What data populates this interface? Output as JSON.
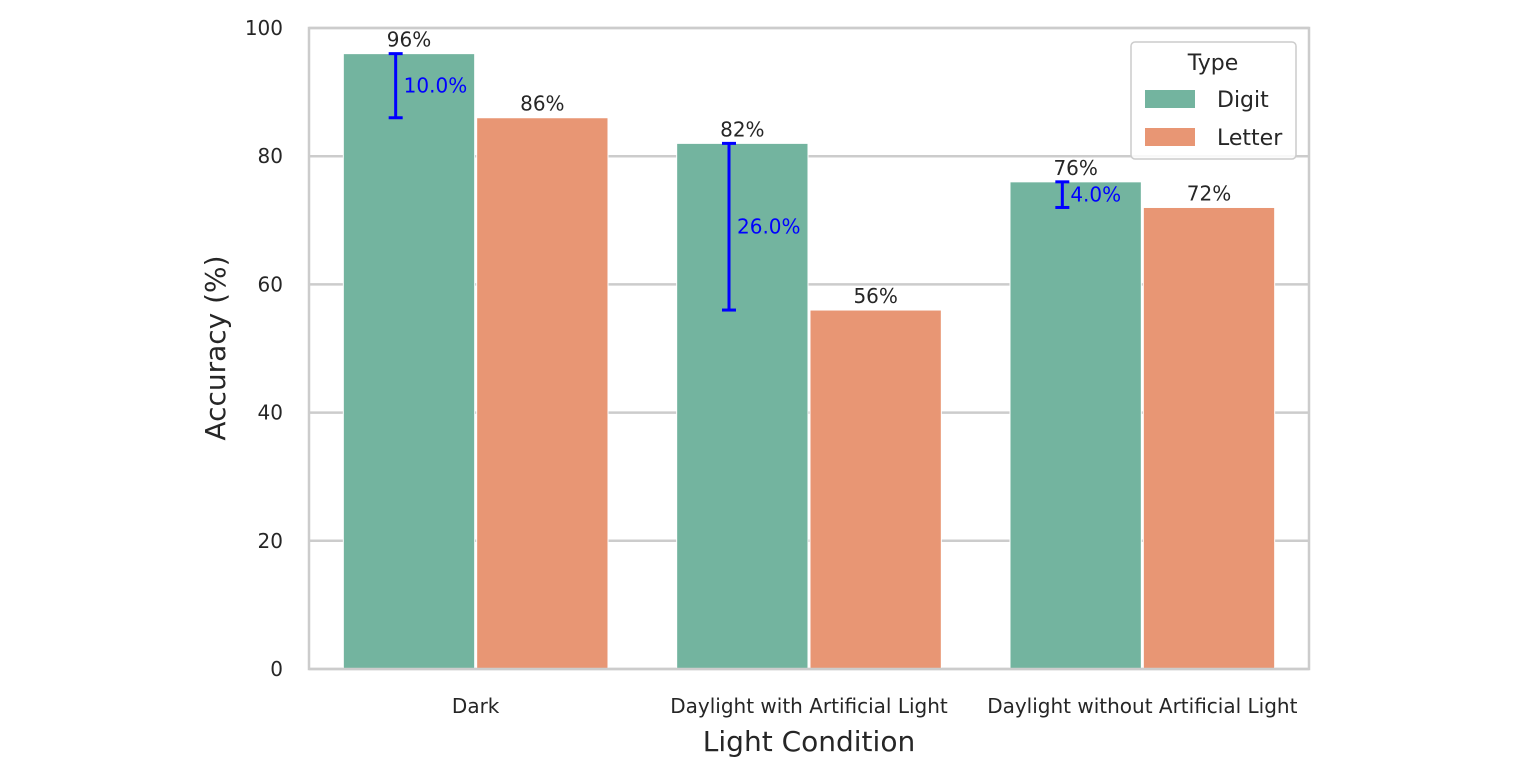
{
  "chart_data": {
    "type": "bar",
    "title": "",
    "xlabel": "Light Condition",
    "ylabel": "Accuracy (%)",
    "ylim": [
      0,
      100
    ],
    "yticks": [
      "0",
      "20",
      "40",
      "60",
      "80",
      "100"
    ],
    "grid": true,
    "categories": [
      "Dark",
      "Daylight with Artificial Light",
      "Daylight without Artificial Light"
    ],
    "series": [
      {
        "name": "Digit",
        "values": [
          96,
          82,
          76
        ],
        "color": "#73b49f",
        "labels": [
          "96%",
          "82%",
          "76%"
        ]
      },
      {
        "name": "Letter",
        "values": [
          86,
          56,
          72
        ],
        "color": "#e89674",
        "labels": [
          "86%",
          "56%",
          "72%"
        ]
      }
    ],
    "differences": [
      {
        "category": "Dark",
        "high": 96,
        "low": 86,
        "label": "10.0%"
      },
      {
        "category": "Daylight with Artificial Light",
        "high": 82,
        "low": 56,
        "label": "26.0%"
      },
      {
        "category": "Daylight without Artificial Light",
        "high": 76,
        "low": 72,
        "label": "4.0%"
      }
    ],
    "difference_color": "#0000ff",
    "legend": {
      "title": "Type",
      "placement": "top-right"
    }
  }
}
